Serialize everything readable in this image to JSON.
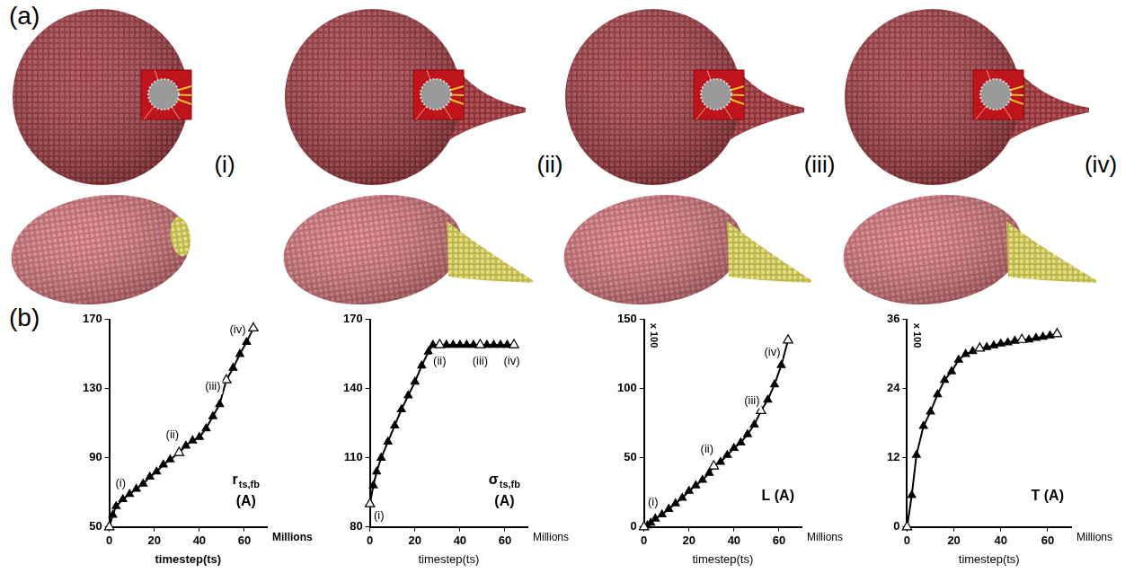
{
  "panel_a": {
    "label": "(a)",
    "snapshots": [
      "(i)",
      "(ii)",
      "(iii)",
      "(iv)"
    ]
  },
  "panel_b": {
    "label": "(b)"
  },
  "chart_data": [
    {
      "type": "line",
      "ylabel": {
        "text": "r",
        "subscript": "ts,fb",
        "unit": "(A)"
      },
      "xlabel": "timestep(ts)",
      "x_unit": "Millions",
      "xlim": [
        0,
        70
      ],
      "xticks": [
        0,
        20,
        40,
        60
      ],
      "ylim": [
        50,
        170
      ],
      "yticks": [
        50,
        90,
        130,
        170
      ],
      "grid": false,
      "series": [
        {
          "x": [
            0,
            1.5,
            3,
            6,
            9,
            12,
            15,
            18,
            21,
            24,
            27,
            31,
            34,
            37,
            40,
            43,
            46,
            49,
            52,
            55,
            58,
            61,
            64
          ],
          "values": [
            50,
            57,
            62,
            66,
            69,
            72,
            75,
            79,
            82,
            86,
            89,
            93,
            97,
            100,
            102,
            107,
            114,
            121,
            135,
            142,
            150,
            157,
            165
          ],
          "color": "#000000",
          "marker": "filled triangle",
          "line_style": "solid"
        },
        {
          "x": [
            0,
            31,
            52,
            64
          ],
          "values": [
            50,
            93,
            135,
            165
          ],
          "color": "#000000",
          "marker": "open triangle",
          "line_style": "none"
        }
      ],
      "annotations": [
        {
          "text": "(i)",
          "x": 5,
          "y": 75
        },
        {
          "text": "(ii)",
          "x": 28,
          "y": 103
        },
        {
          "text": "(iii)",
          "x": 46,
          "y": 131
        },
        {
          "text": "(iv)",
          "x": 57,
          "y": 164
        }
      ]
    },
    {
      "type": "line",
      "ylabel": {
        "text": "σ",
        "subscript": "ts,fb",
        "unit": "(A)"
      },
      "xlabel": "timestep(ts)",
      "x_unit": "Millions",
      "xlim": [
        0,
        70
      ],
      "xticks": [
        0,
        20,
        40,
        60
      ],
      "ylim": [
        80,
        170
      ],
      "yticks": [
        80,
        110,
        140,
        170
      ],
      "grid": false,
      "series": [
        {
          "x": [
            0,
            1.5,
            3,
            5,
            8,
            11,
            14,
            17,
            20,
            23,
            26,
            28,
            31,
            34,
            37,
            40,
            43,
            46,
            49,
            52,
            55,
            58,
            61,
            64
          ],
          "values": [
            90,
            98,
            104,
            110,
            117,
            124,
            131,
            137,
            143,
            150,
            156,
            159,
            159,
            159,
            159,
            159,
            159,
            159,
            159,
            159,
            159,
            159,
            159,
            159
          ],
          "color": "#000000",
          "marker": "filled triangle",
          "line_style": "solid"
        },
        {
          "x": [
            0,
            31,
            49,
            64
          ],
          "values": [
            90,
            159,
            159,
            159
          ],
          "color": "#000000",
          "marker": "open triangle",
          "line_style": "none"
        }
      ],
      "annotations": [
        {
          "text": "(i)",
          "x": 4,
          "y": 85
        },
        {
          "text": "(ii)",
          "x": 31,
          "y": 152
        },
        {
          "text": "(iii)",
          "x": 49,
          "y": 152
        },
        {
          "text": "(iv)",
          "x": 63,
          "y": 152
        }
      ]
    },
    {
      "type": "line",
      "ylabel": {
        "text": "L",
        "unit": "(A)"
      },
      "y_multiplier": "x 100",
      "xlabel": "timestep(ts)",
      "x_unit": "Millions",
      "xlim": [
        0,
        70
      ],
      "xticks": [
        0,
        20,
        40,
        60
      ],
      "ylim": [
        0,
        150
      ],
      "yticks": [
        0,
        50,
        100,
        150
      ],
      "grid": false,
      "series": [
        {
          "x": [
            0,
            1.5,
            3,
            5,
            8,
            11,
            14,
            17,
            20,
            23,
            26,
            29,
            31,
            34,
            37,
            40,
            43,
            46,
            49,
            52,
            55,
            58,
            61,
            64
          ],
          "values": [
            0,
            1,
            3,
            6,
            9,
            13,
            17,
            21,
            26,
            30,
            34,
            39,
            44,
            47,
            52,
            57,
            61,
            67,
            74,
            84,
            92,
            103,
            117,
            135
          ],
          "color": "#000000",
          "marker": "filled triangle",
          "line_style": "solid"
        },
        {
          "x": [
            0,
            31,
            52,
            64
          ],
          "values": [
            0,
            44,
            84,
            135
          ],
          "color": "#000000",
          "marker": "open triangle",
          "line_style": "none"
        }
      ],
      "annotations": [
        {
          "text": "(i)",
          "x": 4,
          "y": 18
        },
        {
          "text": "(ii)",
          "x": 28,
          "y": 56
        },
        {
          "text": "(iii)",
          "x": 48,
          "y": 91
        },
        {
          "text": "(iv)",
          "x": 57,
          "y": 126
        }
      ]
    },
    {
      "type": "line",
      "ylabel": {
        "text": "T",
        "unit": "(A)"
      },
      "y_multiplier": "x 100",
      "xlabel": "timestep(ts)",
      "x_unit": "Millions",
      "xlim": [
        0,
        70
      ],
      "xticks": [
        0,
        20,
        40,
        60
      ],
      "ylim": [
        0,
        36
      ],
      "yticks": [
        0,
        12,
        24,
        36
      ],
      "grid": false,
      "series": [
        {
          "x": [
            0,
            2,
            4,
            7,
            10,
            13,
            16,
            19,
            22,
            25,
            28,
            31,
            34,
            37,
            40,
            43,
            46,
            49,
            52,
            55,
            58,
            61,
            64
          ],
          "values": [
            0,
            5.5,
            12.5,
            17.5,
            20,
            23,
            25.5,
            27,
            29,
            30,
            30.5,
            31,
            31.2,
            31.5,
            31.8,
            32,
            32.3,
            32.5,
            32.5,
            32.8,
            33,
            33.2,
            33.5
          ],
          "color": "#000000",
          "marker": "filled triangle",
          "line_style": "solid"
        },
        {
          "x": [
            0,
            31,
            49,
            64
          ],
          "values": [
            0,
            31,
            32.5,
            33.5
          ],
          "color": "#000000",
          "marker": "open triangle",
          "line_style": "none"
        }
      ]
    }
  ]
}
